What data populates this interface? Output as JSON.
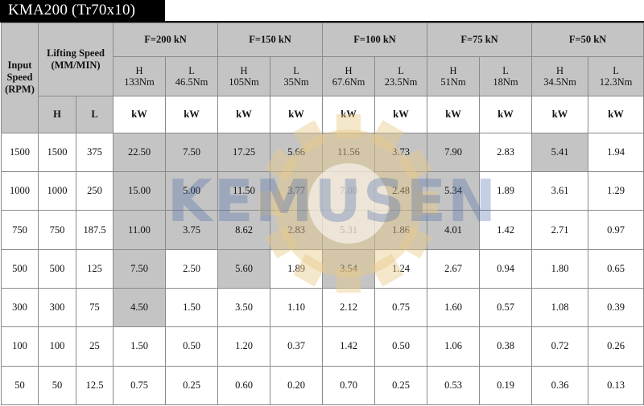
{
  "title": "KMA200 (Tr70x10)",
  "watermark": "KEMUSEN",
  "colors": {
    "header_gray": "#c4c4c4",
    "title_bar": "#000000",
    "watermark_blue": "#4669aa",
    "watermark_gold": "#e8c98a"
  },
  "headers": {
    "input_speed": "Input Speed (RPM)",
    "lifting_speed": "Lifting Speed (MM/MIN)",
    "h": "H",
    "l": "L",
    "unit": "kW"
  },
  "loads": [
    {
      "force": "F=200 kN",
      "h_label": "H",
      "h_torque": "133Nm",
      "l_label": "L",
      "l_torque": "46.5Nm"
    },
    {
      "force": "F=150 kN",
      "h_label": "H",
      "h_torque": "105Nm",
      "l_label": "L",
      "l_torque": "35Nm"
    },
    {
      "force": "F=100 kN",
      "h_label": "H",
      "h_torque": "67.6Nm",
      "l_label": "L",
      "l_torque": "23.5Nm"
    },
    {
      "force": "F=75 kN",
      "h_label": "H",
      "h_torque": "51Nm",
      "l_label": "L",
      "l_torque": "18Nm"
    },
    {
      "force": "F=50 kN",
      "h_label": "H",
      "h_torque": "34.5Nm",
      "l_label": "L",
      "l_torque": "12.3Nm"
    }
  ],
  "rows": [
    {
      "rpm": "1500",
      "h": "1500",
      "l": "375",
      "kw": [
        "22.50",
        "7.50",
        "17.25",
        "5.66",
        "11.56",
        "3.73",
        "7.90",
        "2.83",
        "5.41",
        "1.94"
      ],
      "shaded": [
        1,
        1,
        1,
        1,
        1,
        1,
        1,
        0,
        1,
        0
      ]
    },
    {
      "rpm": "1000",
      "h": "1000",
      "l": "250",
      "kw": [
        "15.00",
        "5.00",
        "11.50",
        "3.77",
        "7.08",
        "2.48",
        "5.34",
        "1.89",
        "3.61",
        "1.29"
      ],
      "shaded": [
        1,
        1,
        1,
        1,
        1,
        1,
        1,
        0,
        0,
        0
      ]
    },
    {
      "rpm": "750",
      "h": "750",
      "l": "187.5",
      "kw": [
        "11.00",
        "3.75",
        "8.62",
        "2.83",
        "5.31",
        "1.86",
        "4.01",
        "1.42",
        "2.71",
        "0.97"
      ],
      "shaded": [
        1,
        1,
        1,
        1,
        1,
        1,
        1,
        0,
        0,
        0
      ]
    },
    {
      "rpm": "500",
      "h": "500",
      "l": "125",
      "kw": [
        "7.50",
        "2.50",
        "5.60",
        "1.89",
        "3.54",
        "1.24",
        "2.67",
        "0.94",
        "1.80",
        "0.65"
      ],
      "shaded": [
        1,
        0,
        1,
        0,
        1,
        0,
        0,
        0,
        0,
        0
      ]
    },
    {
      "rpm": "300",
      "h": "300",
      "l": "75",
      "kw": [
        "4.50",
        "1.50",
        "3.50",
        "1.10",
        "2.12",
        "0.75",
        "1.60",
        "0.57",
        "1.08",
        "0.39"
      ],
      "shaded": [
        1,
        0,
        0,
        0,
        0,
        0,
        0,
        0,
        0,
        0
      ]
    },
    {
      "rpm": "100",
      "h": "100",
      "l": "25",
      "kw": [
        "1.50",
        "0.50",
        "1.20",
        "0.37",
        "1.42",
        "0.50",
        "1.06",
        "0.38",
        "0.72",
        "0.26"
      ],
      "shaded": [
        0,
        0,
        0,
        0,
        0,
        0,
        0,
        0,
        0,
        0
      ]
    },
    {
      "rpm": "50",
      "h": "50",
      "l": "12.5",
      "kw": [
        "0.75",
        "0.25",
        "0.60",
        "0.20",
        "0.70",
        "0.25",
        "0.53",
        "0.19",
        "0.36",
        "0.13"
      ],
      "shaded": [
        0,
        0,
        0,
        0,
        0,
        0,
        0,
        0,
        0,
        0
      ]
    }
  ]
}
